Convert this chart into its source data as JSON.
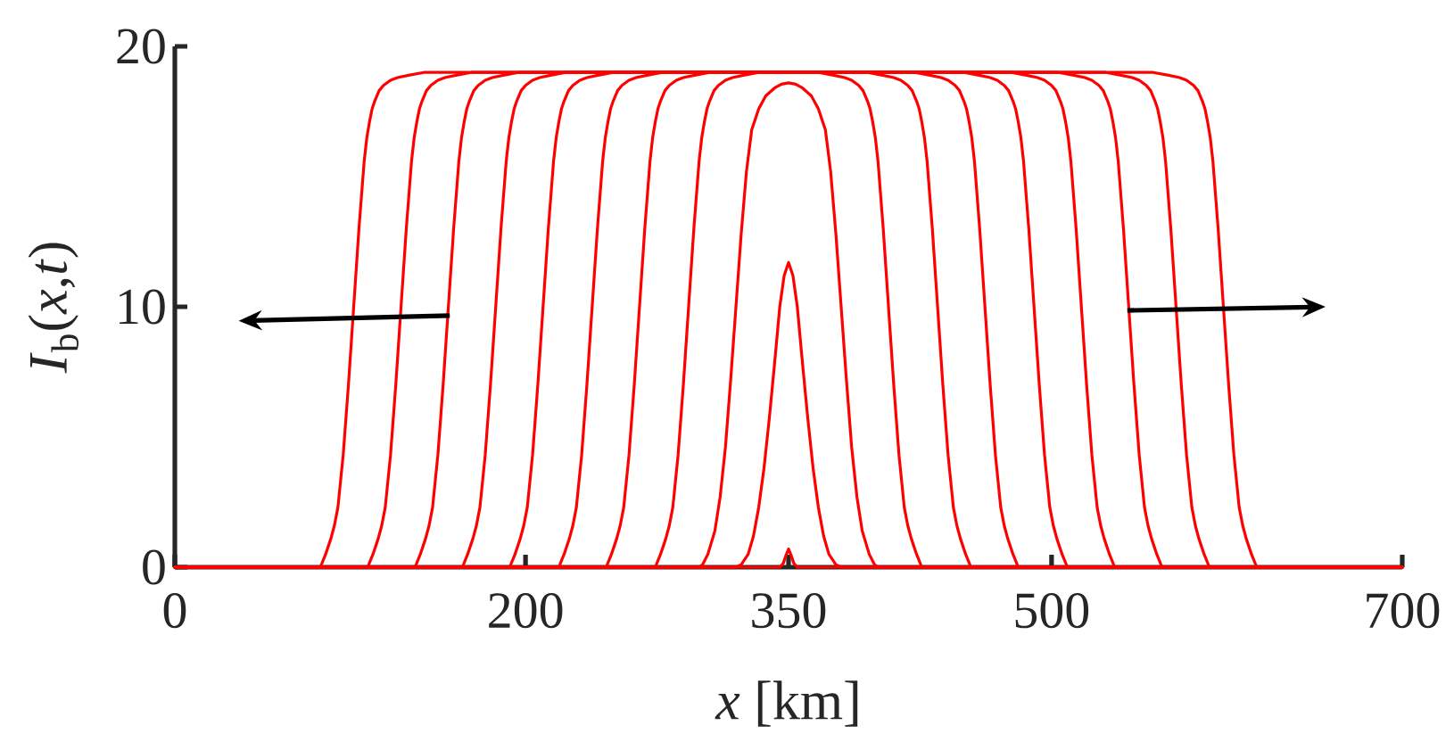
{
  "chart_data": {
    "type": "line",
    "xlabel": "*x* [km]",
    "ylabel": "*I*$_{b}$(*x*,*t*)",
    "xlim": [
      0,
      700
    ],
    "ylim": [
      0,
      20
    ],
    "xticks": [
      0,
      200,
      350,
      500,
      700
    ],
    "yticks": [
      0,
      10,
      20
    ],
    "series": [
      {
        "color": "#ff0000",
        "x": [
          0,
          345,
          347,
          348.5,
          350,
          351.5,
          353,
          355,
          700
        ],
        "values": [
          0,
          0,
          0.15,
          0.45,
          0.7,
          0.45,
          0.15,
          0,
          0
        ]
      },
      {
        "color": "#ff0000",
        "x": [
          0,
          320,
          323,
          327,
          330,
          333,
          336,
          339,
          342,
          345,
          347.5,
          350,
          352.5,
          355,
          358,
          361,
          364,
          367,
          370,
          373,
          377,
          380,
          700
        ],
        "values": [
          0,
          0,
          0.1,
          0.5,
          1.2,
          2.3,
          3.8,
          5.7,
          7.8,
          10,
          11.2,
          11.7,
          11.2,
          10,
          7.8,
          5.7,
          3.8,
          2.3,
          1.2,
          0.5,
          0.1,
          0,
          0
        ]
      },
      {
        "color": "#ff0000",
        "x": [
          0,
          299,
          301,
          304,
          308,
          311,
          314,
          317,
          320,
          323,
          326,
          329,
          333,
          337,
          342,
          346,
          350,
          354,
          358,
          363,
          367,
          371,
          374,
          377,
          380,
          383,
          386,
          389,
          392,
          396,
          399,
          401,
          700
        ],
        "values": [
          0,
          0,
          0.1,
          0.5,
          1.4,
          2.7,
          4.6,
          7.2,
          10,
          12.8,
          15.2,
          16.8,
          17.6,
          18.1,
          18.4,
          18.55,
          18.6,
          18.55,
          18.4,
          18.1,
          17.6,
          16.8,
          15.2,
          12.8,
          10,
          7.2,
          4.6,
          2.7,
          1.4,
          0.5,
          0.1,
          0,
          0
        ]
      },
      {
        "color": "#ff0000",
        "x": [
          0,
          274,
          277,
          280,
          282,
          284,
          287,
          290,
          293,
          296,
          299,
          300.5,
          302,
          303.5,
          305,
          307.5,
          310,
          314,
          318,
          325,
          333,
          367,
          375,
          382,
          386,
          390,
          392.5,
          395,
          396.5,
          398,
          399.5,
          401,
          404,
          407,
          410,
          413,
          416,
          418,
          420,
          423,
          426,
          700
        ],
        "values": [
          0,
          0,
          0.5,
          1.1,
          1.6,
          2.3,
          4.3,
          7,
          10,
          13,
          15.6,
          16.5,
          17.1,
          17.6,
          17.9,
          18.3,
          18.5,
          18.7,
          18.8,
          18.9,
          19,
          19,
          18.9,
          18.8,
          18.7,
          18.5,
          18.3,
          17.9,
          17.6,
          17.1,
          16.5,
          15.6,
          13,
          10,
          7,
          4.3,
          2.3,
          1.6,
          1.1,
          0.5,
          0,
          0
        ]
      },
      {
        "color": "#ff0000",
        "x": [
          0,
          246,
          249,
          252,
          254,
          256,
          259,
          262,
          265,
          268,
          271,
          272.5,
          274,
          275.5,
          277,
          279.5,
          282,
          286,
          290,
          297,
          305,
          395,
          403,
          410,
          414,
          418,
          420.5,
          423,
          424.5,
          426,
          427.5,
          429,
          432,
          435,
          438,
          441,
          444,
          446,
          448,
          451,
          454,
          700
        ],
        "values": [
          0,
          0,
          0.5,
          1.1,
          1.6,
          2.3,
          4.3,
          7,
          10,
          13,
          15.6,
          16.5,
          17.1,
          17.6,
          17.9,
          18.3,
          18.5,
          18.7,
          18.8,
          18.9,
          19,
          19,
          18.9,
          18.8,
          18.7,
          18.5,
          18.3,
          17.9,
          17.6,
          17.1,
          16.5,
          15.6,
          13,
          10,
          7,
          4.3,
          2.3,
          1.6,
          1.1,
          0.5,
          0,
          0
        ]
      },
      {
        "color": "#ff0000",
        "x": [
          0,
          219,
          222,
          225,
          227,
          229,
          232,
          235,
          238,
          241,
          244,
          245.5,
          247,
          248.5,
          250,
          252.5,
          255,
          259,
          263,
          270,
          278,
          422,
          430,
          437,
          441,
          445,
          447.5,
          450,
          451.5,
          453,
          454.5,
          456,
          459,
          462,
          465,
          468,
          471,
          473,
          475,
          478,
          481,
          700
        ],
        "values": [
          0,
          0,
          0.5,
          1.1,
          1.6,
          2.3,
          4.3,
          7,
          10,
          13,
          15.6,
          16.5,
          17.1,
          17.6,
          17.9,
          18.3,
          18.5,
          18.7,
          18.8,
          18.9,
          19,
          19,
          18.9,
          18.8,
          18.7,
          18.5,
          18.3,
          17.9,
          17.6,
          17.1,
          16.5,
          15.6,
          13,
          10,
          7,
          4.3,
          2.3,
          1.6,
          1.1,
          0.5,
          0,
          0
        ]
      },
      {
        "color": "#ff0000",
        "x": [
          0,
          191,
          194,
          197,
          199,
          201,
          204,
          207,
          210,
          213,
          216,
          217.5,
          219,
          220.5,
          222,
          224.5,
          227,
          231,
          235,
          242,
          250,
          450,
          458,
          465,
          469,
          473,
          475.5,
          478,
          479.5,
          481,
          482.5,
          484,
          487,
          490,
          493,
          496,
          499,
          501,
          503,
          506,
          509,
          700
        ],
        "values": [
          0,
          0,
          0.5,
          1.1,
          1.6,
          2.3,
          4.3,
          7,
          10,
          13,
          15.6,
          16.5,
          17.1,
          17.6,
          17.9,
          18.3,
          18.5,
          18.7,
          18.8,
          18.9,
          19,
          19,
          18.9,
          18.8,
          18.7,
          18.5,
          18.3,
          17.9,
          17.6,
          17.1,
          16.5,
          15.6,
          13,
          10,
          7,
          4.3,
          2.3,
          1.6,
          1.1,
          0.5,
          0,
          0
        ]
      },
      {
        "color": "#ff0000",
        "x": [
          0,
          164,
          167,
          170,
          172,
          174,
          177,
          180,
          183,
          186,
          189,
          190.5,
          192,
          193.5,
          195,
          197.5,
          200,
          204,
          208,
          215,
          223,
          477,
          485,
          492,
          496,
          500,
          502.5,
          505,
          506.5,
          508,
          509.5,
          511,
          514,
          517,
          520,
          523,
          526,
          528,
          530,
          533,
          536,
          700
        ],
        "values": [
          0,
          0,
          0.5,
          1.1,
          1.6,
          2.3,
          4.3,
          7,
          10,
          13,
          15.6,
          16.5,
          17.1,
          17.6,
          17.9,
          18.3,
          18.5,
          18.7,
          18.8,
          18.9,
          19,
          19,
          18.9,
          18.8,
          18.7,
          18.5,
          18.3,
          17.9,
          17.6,
          17.1,
          16.5,
          15.6,
          13,
          10,
          7,
          4.3,
          2.3,
          1.6,
          1.1,
          0.5,
          0,
          0
        ]
      },
      {
        "color": "#ff0000",
        "x": [
          0,
          137,
          140,
          143,
          145,
          147,
          150,
          153,
          156,
          159,
          162,
          163.5,
          165,
          166.5,
          168,
          170.5,
          173,
          177,
          181,
          188,
          196,
          504,
          512,
          519,
          523,
          527,
          529.5,
          532,
          533.5,
          535,
          536.5,
          538,
          541,
          544,
          547,
          550,
          553,
          555,
          557,
          560,
          563,
          700
        ],
        "values": [
          0,
          0,
          0.5,
          1.1,
          1.6,
          2.3,
          4.3,
          7,
          10,
          13,
          15.6,
          16.5,
          17.1,
          17.6,
          17.9,
          18.3,
          18.5,
          18.7,
          18.8,
          18.9,
          19,
          19,
          18.9,
          18.8,
          18.7,
          18.5,
          18.3,
          17.9,
          17.6,
          17.1,
          16.5,
          15.6,
          13,
          10,
          7,
          4.3,
          2.3,
          1.6,
          1.1,
          0.5,
          0,
          0
        ]
      },
      {
        "color": "#ff0000",
        "x": [
          0,
          110,
          113,
          116,
          118,
          120,
          123,
          126,
          129,
          132,
          135,
          136.5,
          138,
          139.5,
          141,
          143.5,
          146,
          150,
          154,
          161,
          169,
          531,
          539,
          546,
          550,
          554,
          556.5,
          559,
          560.5,
          562,
          563.5,
          565,
          568,
          571,
          574,
          577,
          580,
          582,
          584,
          587,
          590,
          700
        ],
        "values": [
          0,
          0,
          0.5,
          1.1,
          1.6,
          2.3,
          4.3,
          7,
          10,
          13,
          15.6,
          16.5,
          17.1,
          17.6,
          17.9,
          18.3,
          18.5,
          18.7,
          18.8,
          18.9,
          19,
          19,
          18.9,
          18.8,
          18.7,
          18.5,
          18.3,
          17.9,
          17.6,
          17.1,
          16.5,
          15.6,
          13,
          10,
          7,
          4.3,
          2.3,
          1.6,
          1.1,
          0.5,
          0,
          0
        ]
      },
      {
        "color": "#ff0000",
        "x": [
          0,
          83,
          86,
          89,
          91,
          93,
          96,
          99,
          102,
          105,
          108,
          109.5,
          111,
          112.5,
          114,
          116.5,
          119,
          123,
          127,
          134,
          142,
          558,
          566,
          573,
          577,
          581,
          583.5,
          586,
          587.5,
          589,
          590.5,
          592,
          595,
          598,
          601,
          604,
          607,
          609,
          611,
          614,
          617,
          700
        ],
        "values": [
          0,
          0,
          0.5,
          1.1,
          1.6,
          2.3,
          4.3,
          7,
          10,
          13,
          15.6,
          16.5,
          17.1,
          17.6,
          17.9,
          18.3,
          18.5,
          18.7,
          18.8,
          18.9,
          19,
          19,
          18.9,
          18.8,
          18.7,
          18.5,
          18.3,
          17.9,
          17.6,
          17.1,
          16.5,
          15.6,
          13,
          10,
          7,
          4.3,
          2.3,
          1.6,
          1.1,
          0.5,
          0,
          0
        ]
      }
    ]
  }
}
